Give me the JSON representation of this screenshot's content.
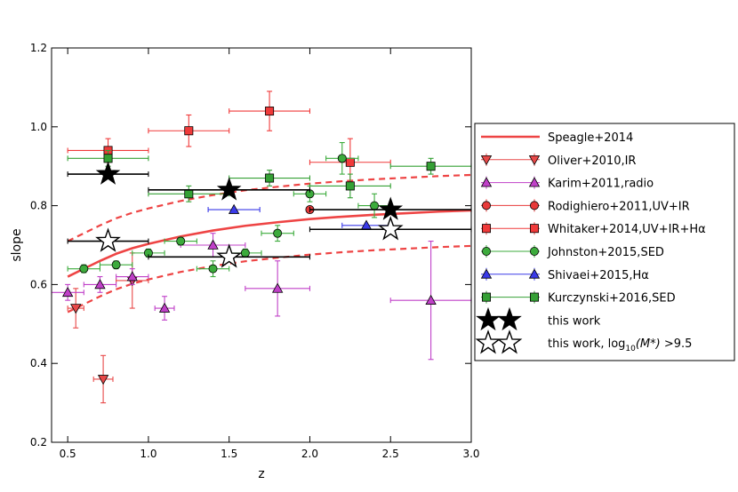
{
  "chart_data": {
    "type": "scatter",
    "title": "",
    "xlabel": "z",
    "ylabel": "slope",
    "xlim": [
      0.4,
      3.0
    ],
    "ylim": [
      0.2,
      1.2
    ],
    "xticks": [
      0.5,
      1.0,
      1.5,
      2.0,
      2.5,
      3.0
    ],
    "xtick_labels": [
      "0.5",
      "1.0",
      "1.5",
      "2.0",
      "2.5",
      "3.0"
    ],
    "yticks": [
      0.2,
      0.4,
      0.6,
      0.8,
      1.0,
      1.2
    ],
    "ytick_labels": [
      "0.2",
      "0.4",
      "0.6",
      "0.8",
      "1.0",
      "1.2"
    ],
    "grid": false,
    "legend_position": "outside-right",
    "colors": {
      "speagle": "#ee4444",
      "oliver": "#e84848",
      "karim": "#c040c8",
      "rodighiero": "#e83a3a",
      "whitaker": "#f03a3a",
      "johnston": "#3cab3c",
      "shivaei": "#3a3ae8",
      "kurczynski": "#34a034",
      "this_work": "#000000"
    },
    "line": {
      "name": "Speagle+2014",
      "key": "speagle",
      "x": [
        0.5,
        0.6,
        0.7,
        0.8,
        0.9,
        1.0,
        1.2,
        1.4,
        1.6,
        1.8,
        2.0,
        2.2,
        2.4,
        2.6,
        2.8,
        3.0
      ],
      "y": [
        0.62,
        0.64,
        0.66,
        0.678,
        0.692,
        0.703,
        0.722,
        0.737,
        0.749,
        0.758,
        0.766,
        0.772,
        0.777,
        0.781,
        0.785,
        0.788
      ],
      "band_offset": 0.09
    },
    "series": [
      {
        "name": "Oliver+2010,IR",
        "key": "oliver",
        "marker": "triangle-down",
        "points": [
          {
            "x": 0.55,
            "y": 0.54,
            "xerr": 0.05,
            "yerr": 0.05
          },
          {
            "x": 0.72,
            "y": 0.36,
            "xerr": 0.06,
            "yerr": 0.06
          },
          {
            "x": 0.9,
            "y": 0.61,
            "xerr": 0.1,
            "yerr": 0.07
          }
        ]
      },
      {
        "name": "Karim+2011,radio",
        "key": "karim",
        "marker": "triangle-up",
        "points": [
          {
            "x": 0.5,
            "y": 0.58,
            "xerr": 0.1,
            "yerr": 0.02
          },
          {
            "x": 0.7,
            "y": 0.6,
            "xerr": 0.1,
            "yerr": 0.02
          },
          {
            "x": 0.9,
            "y": 0.62,
            "xerr": 0.1,
            "yerr": 0.02
          },
          {
            "x": 1.1,
            "y": 0.54,
            "xerr": 0.06,
            "yerr": 0.03
          },
          {
            "x": 1.4,
            "y": 0.7,
            "xerr": 0.2,
            "yerr": 0.03
          },
          {
            "x": 1.8,
            "y": 0.59,
            "xerr": 0.2,
            "yerr": 0.07
          },
          {
            "x": 2.75,
            "y": 0.56,
            "xerr": 0.25,
            "yerr": 0.15
          }
        ]
      },
      {
        "name": "Rodighiero+2011,UV+IR",
        "key": "rodighiero",
        "marker": "circle",
        "points": [
          {
            "x": 2.0,
            "y": 0.79,
            "xerr": 0.0,
            "yerr": 0.0
          }
        ]
      },
      {
        "name": "Whitaker+2014,UV+IR+Hα",
        "key": "whitaker",
        "marker": "square",
        "points": [
          {
            "x": 0.75,
            "y": 0.94,
            "xerr": 0.25,
            "yerr": 0.03
          },
          {
            "x": 1.25,
            "y": 0.99,
            "xerr": 0.25,
            "yerr": 0.04
          },
          {
            "x": 1.75,
            "y": 1.04,
            "xerr": 0.25,
            "yerr": 0.05
          },
          {
            "x": 2.25,
            "y": 0.91,
            "xerr": 0.25,
            "yerr": 0.06
          }
        ]
      },
      {
        "name": "Johnston+2015,SED",
        "key": "johnston",
        "marker": "circle",
        "points": [
          {
            "x": 0.6,
            "y": 0.64,
            "xerr": 0.1,
            "yerr": 0.01
          },
          {
            "x": 0.8,
            "y": 0.65,
            "xerr": 0.1,
            "yerr": 0.01
          },
          {
            "x": 1.0,
            "y": 0.68,
            "xerr": 0.1,
            "yerr": 0.01
          },
          {
            "x": 1.2,
            "y": 0.71,
            "xerr": 0.1,
            "yerr": 0.01
          },
          {
            "x": 1.4,
            "y": 0.64,
            "xerr": 0.1,
            "yerr": 0.02
          },
          {
            "x": 1.6,
            "y": 0.68,
            "xerr": 0.1,
            "yerr": 0.01
          },
          {
            "x": 1.8,
            "y": 0.73,
            "xerr": 0.1,
            "yerr": 0.02
          },
          {
            "x": 2.0,
            "y": 0.83,
            "xerr": 0.1,
            "yerr": 0.02
          },
          {
            "x": 2.2,
            "y": 0.92,
            "xerr": 0.1,
            "yerr": 0.04
          },
          {
            "x": 2.4,
            "y": 0.8,
            "xerr": 0.1,
            "yerr": 0.03
          }
        ]
      },
      {
        "name": "Shivaei+2015,Hα",
        "key": "shivaei",
        "marker": "triangle-up",
        "points": [
          {
            "x": 1.53,
            "y": 0.79,
            "xerr": 0.16,
            "yerr": 0.0
          },
          {
            "x": 2.35,
            "y": 0.75,
            "xerr": 0.15,
            "yerr": 0.0
          }
        ]
      },
      {
        "name": "Kurczynski+2016,SED",
        "key": "kurczynski",
        "marker": "square",
        "points": [
          {
            "x": 0.75,
            "y": 0.92,
            "xerr": 0.25,
            "yerr": 0.02
          },
          {
            "x": 1.25,
            "y": 0.83,
            "xerr": 0.25,
            "yerr": 0.02
          },
          {
            "x": 1.75,
            "y": 0.87,
            "xerr": 0.25,
            "yerr": 0.02
          },
          {
            "x": 2.25,
            "y": 0.85,
            "xerr": 0.25,
            "yerr": 0.03
          },
          {
            "x": 2.75,
            "y": 0.9,
            "xerr": 0.25,
            "yerr": 0.02
          }
        ]
      },
      {
        "name": "this work",
        "key": "this_work",
        "marker": "star-filled",
        "points": [
          {
            "x": 0.75,
            "y": 0.88,
            "xerr": 0.25,
            "yerr": 0.0
          },
          {
            "x": 1.5,
            "y": 0.84,
            "xerr": 0.5,
            "yerr": 0.0
          },
          {
            "x": 2.5,
            "y": 0.79,
            "xerr": 0.5,
            "yerr": 0.0
          }
        ]
      },
      {
        "name": "this work, log10(M*) >9.5",
        "key": "this_work",
        "marker": "star-open",
        "points": [
          {
            "x": 0.75,
            "y": 0.71,
            "xerr": 0.25,
            "yerr": 0.0
          },
          {
            "x": 1.5,
            "y": 0.67,
            "xerr": 0.5,
            "yerr": 0.0
          },
          {
            "x": 2.5,
            "y": 0.74,
            "xerr": 0.5,
            "yerr": 0.0
          }
        ]
      }
    ],
    "legend": [
      {
        "label": "Speagle+2014",
        "marker": "line",
        "key": "speagle"
      },
      {
        "label": "Oliver+2010,IR",
        "marker": "triangle-down",
        "key": "oliver"
      },
      {
        "label": "Karim+2011,radio",
        "marker": "triangle-up",
        "key": "karim"
      },
      {
        "label": "Rodighiero+2011,UV+IR",
        "marker": "circle",
        "key": "rodighiero"
      },
      {
        "label": "Whitaker+2014,UV+IR+Hα",
        "marker": "square",
        "key": "whitaker"
      },
      {
        "label": "Johnston+2015,SED",
        "marker": "circle",
        "key": "johnston"
      },
      {
        "label": "Shivaei+2015,Hα",
        "marker": "triangle-up",
        "key": "shivaei"
      },
      {
        "label": "Kurczynski+2016,SED",
        "marker": "square",
        "key": "kurczynski"
      },
      {
        "label": "this work",
        "marker": "star-filled",
        "key": "this_work"
      },
      {
        "label": "this work, log10(M*) >9.5",
        "marker": "star-open",
        "key": "this_work",
        "label_prefix": "this work, log",
        "label_sub": "10",
        "label_mid": "(M*)",
        "label_suffix": " >9.5"
      }
    ]
  }
}
